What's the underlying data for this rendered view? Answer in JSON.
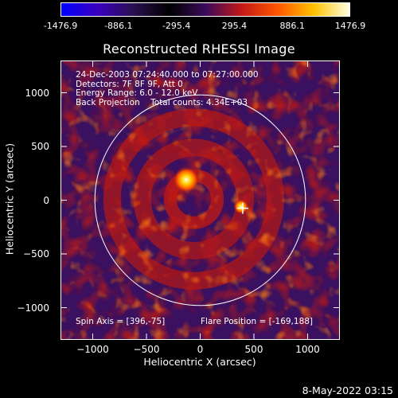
{
  "colorbar": {
    "tick_labels": [
      "-1476.9",
      "-886.1",
      "-295.4",
      "295.4",
      "886.1",
      "1476.9"
    ],
    "tick_values": [
      -1476.9,
      -886.1,
      -295.4,
      295.4,
      886.1,
      1476.9
    ],
    "colors": [
      "#0000ff",
      "#3a00c0",
      "#2a1050",
      "#000000",
      "#3a0a5a",
      "#c21818",
      "#ff5500",
      "#ffc000",
      "#ffffe0"
    ]
  },
  "chart_data": {
    "type": "heatmap",
    "title": "Reconstructed RHESSI Image",
    "xlabel": "Heliocentric X (arcsec)",
    "ylabel": "Heliocentric Y (arcsec)",
    "xlim": [
      -1300,
      1300
    ],
    "ylim": [
      -1300,
      1300
    ],
    "xticks": [
      -1000,
      -500,
      0,
      500,
      1000
    ],
    "yticks": [
      1000,
      500,
      0,
      -500,
      -1000
    ],
    "xtick_labels": [
      "−1000",
      "−500",
      "0",
      "500",
      "1000"
    ],
    "ytick_labels": [
      "1000",
      "500",
      "0",
      "−500",
      "−1000"
    ],
    "solar_disk_radius_arcsec": 980,
    "rings_radii_arcsec": [
      220,
      480,
      760
    ],
    "bright_sources": [
      {
        "x": -130,
        "y": 190,
        "value": 1476.9
      },
      {
        "x": 380,
        "y": -60,
        "value": 1200
      }
    ],
    "flare_marker": {
      "x": 396,
      "y": -75
    },
    "info_lines": [
      "24-Dec-2003 07:24:40.000 to 07:27:00.000",
      "Detectors: 7F 8F 9F, Att 0",
      "Energy Range: 6.0 - 12.0 keV",
      "Back Projection    Total counts: 4.34E+03"
    ],
    "spin_axis_text": "Spin Axis = [396,-75]",
    "flare_position_text": "Flare Position = [-169,188]"
  },
  "footer": {
    "date": "8-May-2022 03:15"
  }
}
